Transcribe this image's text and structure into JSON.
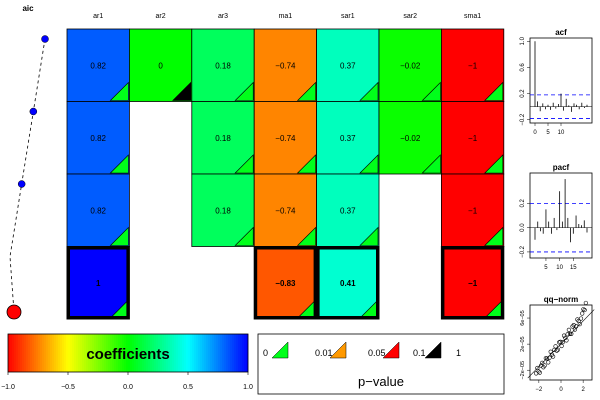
{
  "chart_data": [
    {
      "type": "heatmap",
      "title": "",
      "columns": [
        "ar1",
        "ar2",
        "ar3",
        "ma1",
        "sar1",
        "sar2",
        "sma1"
      ],
      "rows": [
        {
          "cells": [
            {
              "col": "ar1",
              "value": 0.82,
              "label": "0.82",
              "pval": "0"
            },
            {
              "col": "ar2",
              "value": 0,
              "label": "0",
              "pval": "0.1"
            },
            {
              "col": "ar3",
              "value": 0.18,
              "label": "0.18",
              "pval": "0"
            },
            {
              "col": "ma1",
              "value": -0.74,
              "label": "−0.74",
              "pval": "0"
            },
            {
              "col": "sar1",
              "value": 0.37,
              "label": "0.37",
              "pval": "0"
            },
            {
              "col": "sar2",
              "value": -0.02,
              "label": "−0.02",
              "pval": "0"
            },
            {
              "col": "sma1",
              "value": -1,
              "label": "−1",
              "pval": "0"
            }
          ]
        },
        {
          "cells": [
            {
              "col": "ar1",
              "value": 0.82,
              "label": "0.82",
              "pval": "0"
            },
            {
              "col": "ar3",
              "value": 0.18,
              "label": "0.18",
              "pval": "0"
            },
            {
              "col": "ma1",
              "value": -0.74,
              "label": "−0.74",
              "pval": "0"
            },
            {
              "col": "sar1",
              "value": 0.37,
              "label": "0.37",
              "pval": "0"
            },
            {
              "col": "sar2",
              "value": -0.02,
              "label": "−0.02",
              "pval": "0"
            },
            {
              "col": "sma1",
              "value": -1,
              "label": "−1",
              "pval": "0"
            }
          ]
        },
        {
          "cells": [
            {
              "col": "ar1",
              "value": 0.82,
              "label": "0.82",
              "pval": "0"
            },
            {
              "col": "ar3",
              "value": 0.18,
              "label": "0.18",
              "pval": "0"
            },
            {
              "col": "ma1",
              "value": -0.74,
              "label": "−0.74",
              "pval": "0"
            },
            {
              "col": "sar1",
              "value": 0.37,
              "label": "0.37",
              "pval": "0"
            },
            {
              "col": "sma1",
              "value": -1,
              "label": "−1",
              "pval": "0"
            }
          ]
        },
        {
          "best": true,
          "cells": [
            {
              "col": "ar1",
              "value": 1,
              "label": "1",
              "pval": "0"
            },
            {
              "col": "ma1",
              "value": -0.83,
              "label": "−0.83",
              "pval": "0"
            },
            {
              "col": "sar1",
              "value": 0.41,
              "label": "0.41",
              "pval": "0"
            },
            {
              "col": "sma1",
              "value": -1,
              "label": "−1",
              "pval": "0"
            }
          ]
        }
      ],
      "pval_legend": {
        "title": "p−value",
        "breaks": [
          "0",
          "0.01",
          "0.05",
          "0.1",
          "1"
        ],
        "levels": [
          {
            "key": "0",
            "color": "#00ff1a"
          },
          {
            "key": "0.01",
            "color": "#ff9900"
          },
          {
            "key": "0.05",
            "color": "#ff0000"
          },
          {
            "key": "0.1",
            "color": "#000000"
          }
        ]
      },
      "colorbar": {
        "title": "coefficients",
        "ticks": [
          "−1.0",
          "−0.5",
          "0.0",
          "0.5",
          "1.0"
        ],
        "range": [
          -1,
          1
        ]
      }
    },
    {
      "type": "line",
      "title": "aic",
      "values": [
        4,
        3,
        2,
        1
      ],
      "highlight_index": 3
    },
    {
      "type": "bar",
      "title": "acf",
      "ylim": [
        -0.25,
        1.05
      ],
      "yticks": [
        "1.0",
        "0.6",
        "0.2",
        "−0.2"
      ],
      "xticks": [
        "0",
        "5",
        "10"
      ],
      "conf_band": 0.18,
      "lags": [
        0,
        1,
        2,
        3,
        4,
        5,
        6,
        7,
        8,
        9,
        10,
        11,
        12,
        13,
        14,
        15,
        16,
        17,
        18,
        19,
        20
      ],
      "values": [
        1.0,
        0.08,
        -0.07,
        0.05,
        -0.04,
        0.03,
        -0.05,
        0.06,
        -0.03,
        0.04,
        0.2,
        -0.06,
        0.12,
        0.02,
        -0.08,
        0.05,
        0.03,
        -0.04,
        0.06,
        -0.02,
        0.03
      ]
    },
    {
      "type": "bar",
      "title": "pacf",
      "ylim": [
        -0.25,
        0.45
      ],
      "yticks": [
        "0.2",
        "0.0",
        "−0.2"
      ],
      "xticks": [
        "5",
        "10",
        "15"
      ],
      "conf_band": 0.2,
      "lags": [
        1,
        2,
        3,
        4,
        5,
        6,
        7,
        8,
        9,
        10,
        11,
        12,
        13,
        14,
        15,
        16,
        17,
        18,
        19,
        20
      ],
      "values": [
        -0.1,
        0.05,
        -0.03,
        -0.05,
        0.15,
        0.05,
        -0.05,
        0.08,
        -0.02,
        0.3,
        0.05,
        0.4,
        0.08,
        -0.12,
        -0.05,
        0.1,
        0.03,
        0.02,
        0.06,
        -0.04
      ]
    },
    {
      "type": "scatter",
      "title": "qq−norm",
      "xticks": [
        "−2",
        "0",
        "2"
      ],
      "yticks": [
        "−2e−05",
        "2e−05",
        "6e−05"
      ],
      "xlim": [
        -2.8,
        2.8
      ],
      "ylim": [
        -3.5e-05,
        8e-05
      ],
      "ref_line": [
        [
          -3,
          -3.2e-05
        ],
        [
          3,
          7.3e-05
        ]
      ]
    }
  ]
}
